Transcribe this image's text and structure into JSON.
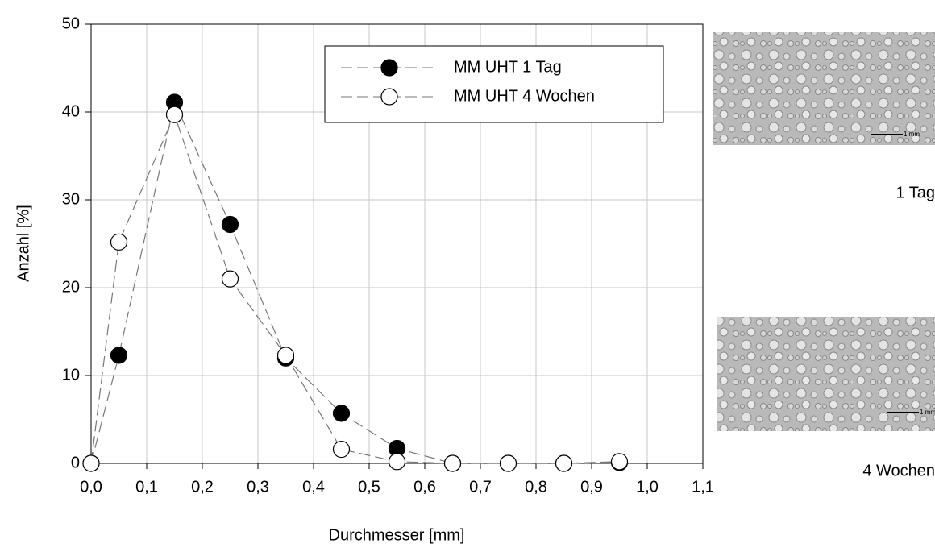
{
  "chart_data": {
    "type": "line",
    "xlabel": "Durchmesser [mm]",
    "ylabel": "Anzahl [%]",
    "x": [
      0,
      0.05,
      0.15,
      0.25,
      0.35,
      0.45,
      0.55,
      0.65,
      0.75,
      0.85,
      0.95
    ],
    "series": [
      {
        "name": "MM UHT 1 Tag",
        "color": "#000000",
        "values": [
          0,
          12.3,
          41.1,
          27.2,
          12.0,
          5.7,
          1.7,
          0,
          0,
          0,
          0.1
        ]
      },
      {
        "name": "MM UHT 4 Wochen",
        "color": "#ffffff",
        "values": [
          0,
          25.2,
          39.7,
          21.0,
          12.3,
          1.6,
          0.2,
          0,
          0,
          0,
          0.2
        ]
      }
    ],
    "xlim": [
      0,
      1.1
    ],
    "xticks": [
      {
        "value": 0,
        "label": "0,0"
      },
      {
        "value": 0.1,
        "label": "0,1"
      },
      {
        "value": 0.2,
        "label": "0,2"
      },
      {
        "value": 0.3,
        "label": "0,3"
      },
      {
        "value": 0.4,
        "label": "0,4"
      },
      {
        "value": 0.5,
        "label": "0,5"
      },
      {
        "value": 0.6,
        "label": "0,6"
      },
      {
        "value": 0.7,
        "label": "0,7"
      },
      {
        "value": 0.8,
        "label": "0,8"
      },
      {
        "value": 0.9,
        "label": "0,9"
      },
      {
        "value": 1.0,
        "label": "1,0"
      },
      {
        "value": 1.1,
        "label": "1,1"
      }
    ],
    "ylim": [
      0,
      50
    ],
    "yticks": [
      0,
      10,
      20,
      30,
      40,
      50
    ],
    "grid": true,
    "legend": "upper right"
  },
  "images": [
    {
      "label": "1 Tag",
      "scale": "1 mm"
    },
    {
      "label": "4 Wochen",
      "scale": "1 mm"
    }
  ]
}
